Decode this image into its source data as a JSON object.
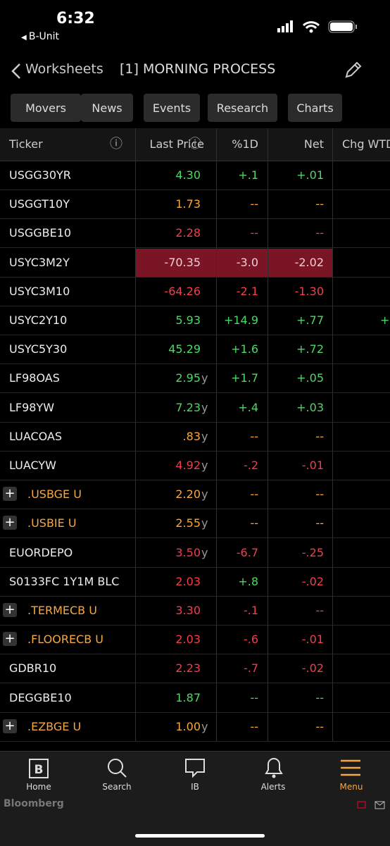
{
  "status": {
    "time": "6:32",
    "back": "B-Unit"
  },
  "nav": {
    "back": "Worksheets",
    "title": "[1] MORNING PROCESS"
  },
  "tabs": [
    "Movers",
    "News",
    "Events",
    "Research",
    "Charts"
  ],
  "table": {
    "columns": [
      "Ticker",
      "Last Price",
      "%1D",
      "Net",
      "Chg WTD"
    ],
    "rows": [
      {
        "ticker": "USGG30YR",
        "price": "4.30",
        "pct": "+.1",
        "net": "+.01",
        "tones": [
          "green",
          "green",
          "green"
        ]
      },
      {
        "ticker": "USGGT10Y",
        "price": "1.73",
        "pct": "--",
        "net": "--",
        "tones": [
          "orange",
          "orange",
          "orange"
        ]
      },
      {
        "ticker": "USGGBE10",
        "price": "2.28",
        "pct": "--",
        "net": "--",
        "tones": [
          "red",
          "red",
          "red"
        ]
      },
      {
        "ticker": "USYC3M2Y",
        "price": "-70.35",
        "pct": "-3.0",
        "net": "-2.02",
        "tones": [
          "white",
          "white",
          "white"
        ],
        "highlight": true
      },
      {
        "ticker": "USYC3M10",
        "price": "-64.26",
        "pct": "-2.1",
        "net": "-1.30",
        "tones": [
          "red",
          "red",
          "red"
        ]
      },
      {
        "ticker": "USYC2Y10",
        "price": "5.93",
        "pct": "+14.9",
        "net": "+.77",
        "tones": [
          "green",
          "green",
          "green"
        ],
        "wtd": "+"
      },
      {
        "ticker": "USYC5Y30",
        "price": "45.29",
        "pct": "+1.6",
        "net": "+.72",
        "tones": [
          "green",
          "green",
          "green"
        ]
      },
      {
        "ticker": "LF98OAS",
        "price": "2.95",
        "suffix": "y",
        "pct": "+1.7",
        "net": "+.05",
        "tones": [
          "green",
          "green",
          "green"
        ]
      },
      {
        "ticker": "LF98YW",
        "price": "7.23",
        "suffix": "y",
        "pct": "+.4",
        "net": "+.03",
        "tones": [
          "green",
          "green",
          "green"
        ]
      },
      {
        "ticker": "LUACOAS",
        "price": ".83",
        "suffix": "y",
        "pct": "--",
        "net": "--",
        "tones": [
          "orange",
          "orange",
          "orange"
        ]
      },
      {
        "ticker": "LUACYW",
        "price": "4.92",
        "suffix": "y",
        "pct": "-.2",
        "net": "-.01",
        "tones": [
          "red",
          "red",
          "red"
        ]
      },
      {
        "ticker": ".USBGE U",
        "group": true,
        "price": "2.20",
        "suffix": "y",
        "pct": "--",
        "net": "--",
        "tones": [
          "orange",
          "orange",
          "orange"
        ]
      },
      {
        "ticker": ".USBIE U",
        "group": true,
        "price": "2.55",
        "suffix": "y",
        "pct": "--",
        "net": "--",
        "tones": [
          "orange",
          "orange",
          "orange"
        ]
      },
      {
        "ticker": "EUORDEPO",
        "price": "3.50",
        "suffix": "y",
        "pct": "-6.7",
        "net": "-.25",
        "tones": [
          "red",
          "red",
          "red"
        ]
      },
      {
        "ticker": "S0133FC 1Y1M BLC",
        "price": "2.03",
        "pct": "+.8",
        "net": "-.02",
        "tones": [
          "red",
          "green",
          "red"
        ]
      },
      {
        "ticker": ".TERMECB U",
        "group": true,
        "price": "3.30",
        "pct": "-.1",
        "net": "--",
        "tones": [
          "red",
          "red",
          "red"
        ]
      },
      {
        "ticker": ".FLOORECB U",
        "group": true,
        "price": "2.03",
        "pct": "-.6",
        "net": "-.01",
        "tones": [
          "red",
          "red",
          "red"
        ]
      },
      {
        "ticker": "GDBR10",
        "price": "2.23",
        "pct": "-.7",
        "net": "-.02",
        "tones": [
          "red",
          "red",
          "red"
        ]
      },
      {
        "ticker": "DEGGBE10",
        "price": "1.87",
        "pct": "--",
        "net": "--",
        "tones": [
          "green",
          "green",
          "green"
        ]
      },
      {
        "ticker": ".EZBGE U",
        "group": true,
        "price": "1.00",
        "suffix": "y",
        "pct": "--",
        "net": "--",
        "tones": [
          "orange",
          "orange",
          "orange"
        ]
      }
    ]
  },
  "tabbar": [
    "Home",
    "Search",
    "IB",
    "Alerts",
    "Menu"
  ],
  "footer": "Bloomberg"
}
